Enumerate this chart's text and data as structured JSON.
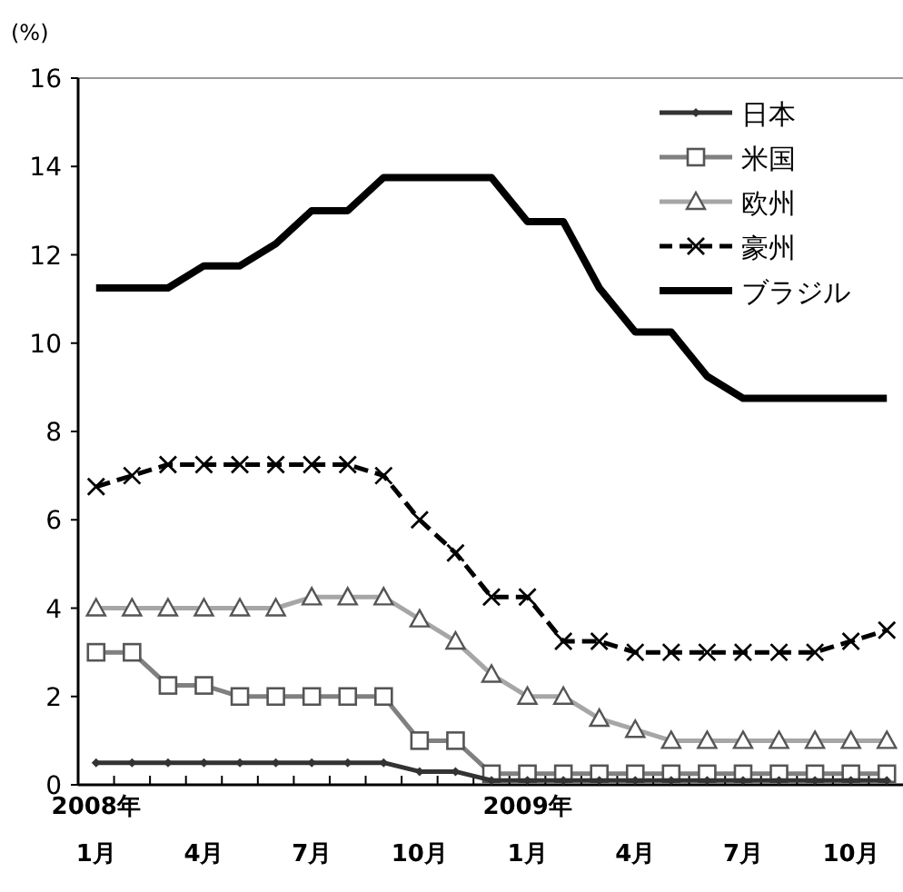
{
  "chart_data": {
    "type": "line",
    "ylabel": "(%)",
    "categories": [
      "2008年\n1月",
      null,
      null,
      "4月",
      null,
      null,
      "7月",
      null,
      null,
      "10月",
      null,
      null,
      "2009年\n1月",
      null,
      null,
      "4月",
      null,
      null,
      "7月",
      null,
      null,
      "10月",
      null
    ],
    "series": [
      {
        "name": "日本",
        "color": "#333333",
        "marker": "diamond",
        "line_style": "solid",
        "values": [
          0.5,
          0.5,
          0.5,
          0.5,
          0.5,
          0.5,
          0.5,
          0.5,
          0.5,
          0.3,
          0.3,
          0.1,
          0.1,
          0.1,
          0.1,
          0.1,
          0.1,
          0.1,
          0.1,
          0.1,
          0.1,
          0.1,
          0.1
        ]
      },
      {
        "name": "米国",
        "color": "#808080",
        "marker": "square",
        "line_style": "solid",
        "values": [
          3,
          3,
          2.25,
          2.25,
          2,
          2,
          2,
          2,
          2,
          1,
          1,
          0.25,
          0.25,
          0.25,
          0.25,
          0.25,
          0.25,
          0.25,
          0.25,
          0.25,
          0.25,
          0.25,
          0.25
        ]
      },
      {
        "name": "欧州",
        "color": "#a6a6a6",
        "marker": "triangle",
        "line_style": "solid",
        "values": [
          4,
          4,
          4,
          4,
          4,
          4,
          4.25,
          4.25,
          4.25,
          3.75,
          3.25,
          2.5,
          2,
          2,
          1.5,
          1.25,
          1,
          1,
          1,
          1,
          1,
          1,
          1
        ]
      },
      {
        "name": "豪州",
        "color": "#000000",
        "marker": "cross",
        "line_style": "dashed",
        "values": [
          6.75,
          7,
          7.25,
          7.25,
          7.25,
          7.25,
          7.25,
          7.25,
          7,
          6,
          5.25,
          4.25,
          4.25,
          3.25,
          3.25,
          3,
          3,
          3,
          3,
          3,
          3,
          3.25,
          3.5
        ]
      },
      {
        "name": "ブラジル",
        "color": "#000000",
        "marker": "none",
        "line_style": "solid",
        "values": [
          11.25,
          11.25,
          11.25,
          11.75,
          11.75,
          12.25,
          13,
          13,
          13.75,
          13.75,
          13.75,
          13.75,
          12.75,
          12.75,
          11.25,
          10.25,
          10.25,
          9.25,
          8.75,
          8.75,
          8.75,
          8.75,
          8.75
        ]
      }
    ],
    "ylim": [
      0,
      16
    ],
    "yticks": [
      0,
      2,
      4,
      6,
      8,
      10,
      12,
      14,
      16
    ],
    "legend": "top right"
  }
}
